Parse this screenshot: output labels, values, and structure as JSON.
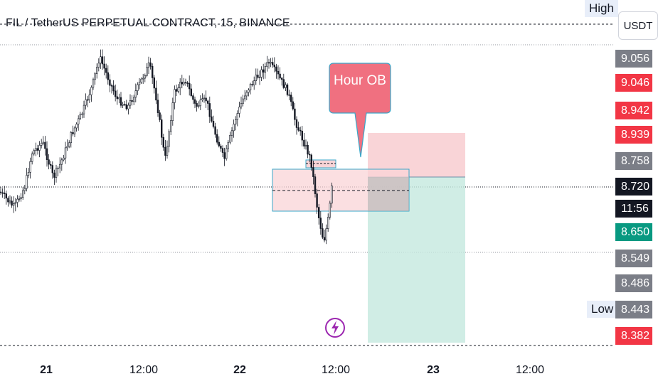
{
  "header": {
    "title": "FIL / TetherUS PERPETUAL CONTRACT, 15, BINANCE",
    "currency": "USDT",
    "high_label": "High",
    "low_label": "Low"
  },
  "chart_data": {
    "type": "candlestick",
    "title": "FIL / TetherUS PERPETUAL CONTRACT, 15, BINANCE",
    "y_range": [
      8.36,
      9.12
    ],
    "x_ticks": [
      {
        "label": "21",
        "bold": true
      },
      {
        "label": "12:00",
        "bold": false
      },
      {
        "label": "22",
        "bold": true
      },
      {
        "label": "12:00",
        "bold": false
      },
      {
        "label": "23",
        "bold": true
      },
      {
        "label": "12:00",
        "bold": false
      }
    ],
    "price_labels": [
      {
        "value": "9.056",
        "color": "#7b7e87"
      },
      {
        "value": "9.046",
        "color": "#f23645"
      },
      {
        "value": "8.942",
        "color": "#f23645"
      },
      {
        "value": "8.939",
        "color": "#f23645"
      },
      {
        "value": "8.758",
        "color": "#7b7e87"
      },
      {
        "value": "8.720",
        "color": "#131722"
      },
      {
        "value": "11:56",
        "color": "#131722"
      },
      {
        "value": "8.650",
        "color": "#089981"
      },
      {
        "value": "8.549",
        "color": "#7b7e87"
      },
      {
        "value": "8.486",
        "color": "#7b7e87"
      },
      {
        "value": "8.443",
        "color": "#7b7e87"
      },
      {
        "value": "8.382",
        "color": "#f23645"
      }
    ],
    "annotation": "Hour OB",
    "colors": {
      "candle": "#131722",
      "stop_zone": "#f7c9cd",
      "target_zone": "#c4e8df",
      "order_block": "#f9d4d7",
      "order_block_border": "#3aa7c9"
    }
  }
}
